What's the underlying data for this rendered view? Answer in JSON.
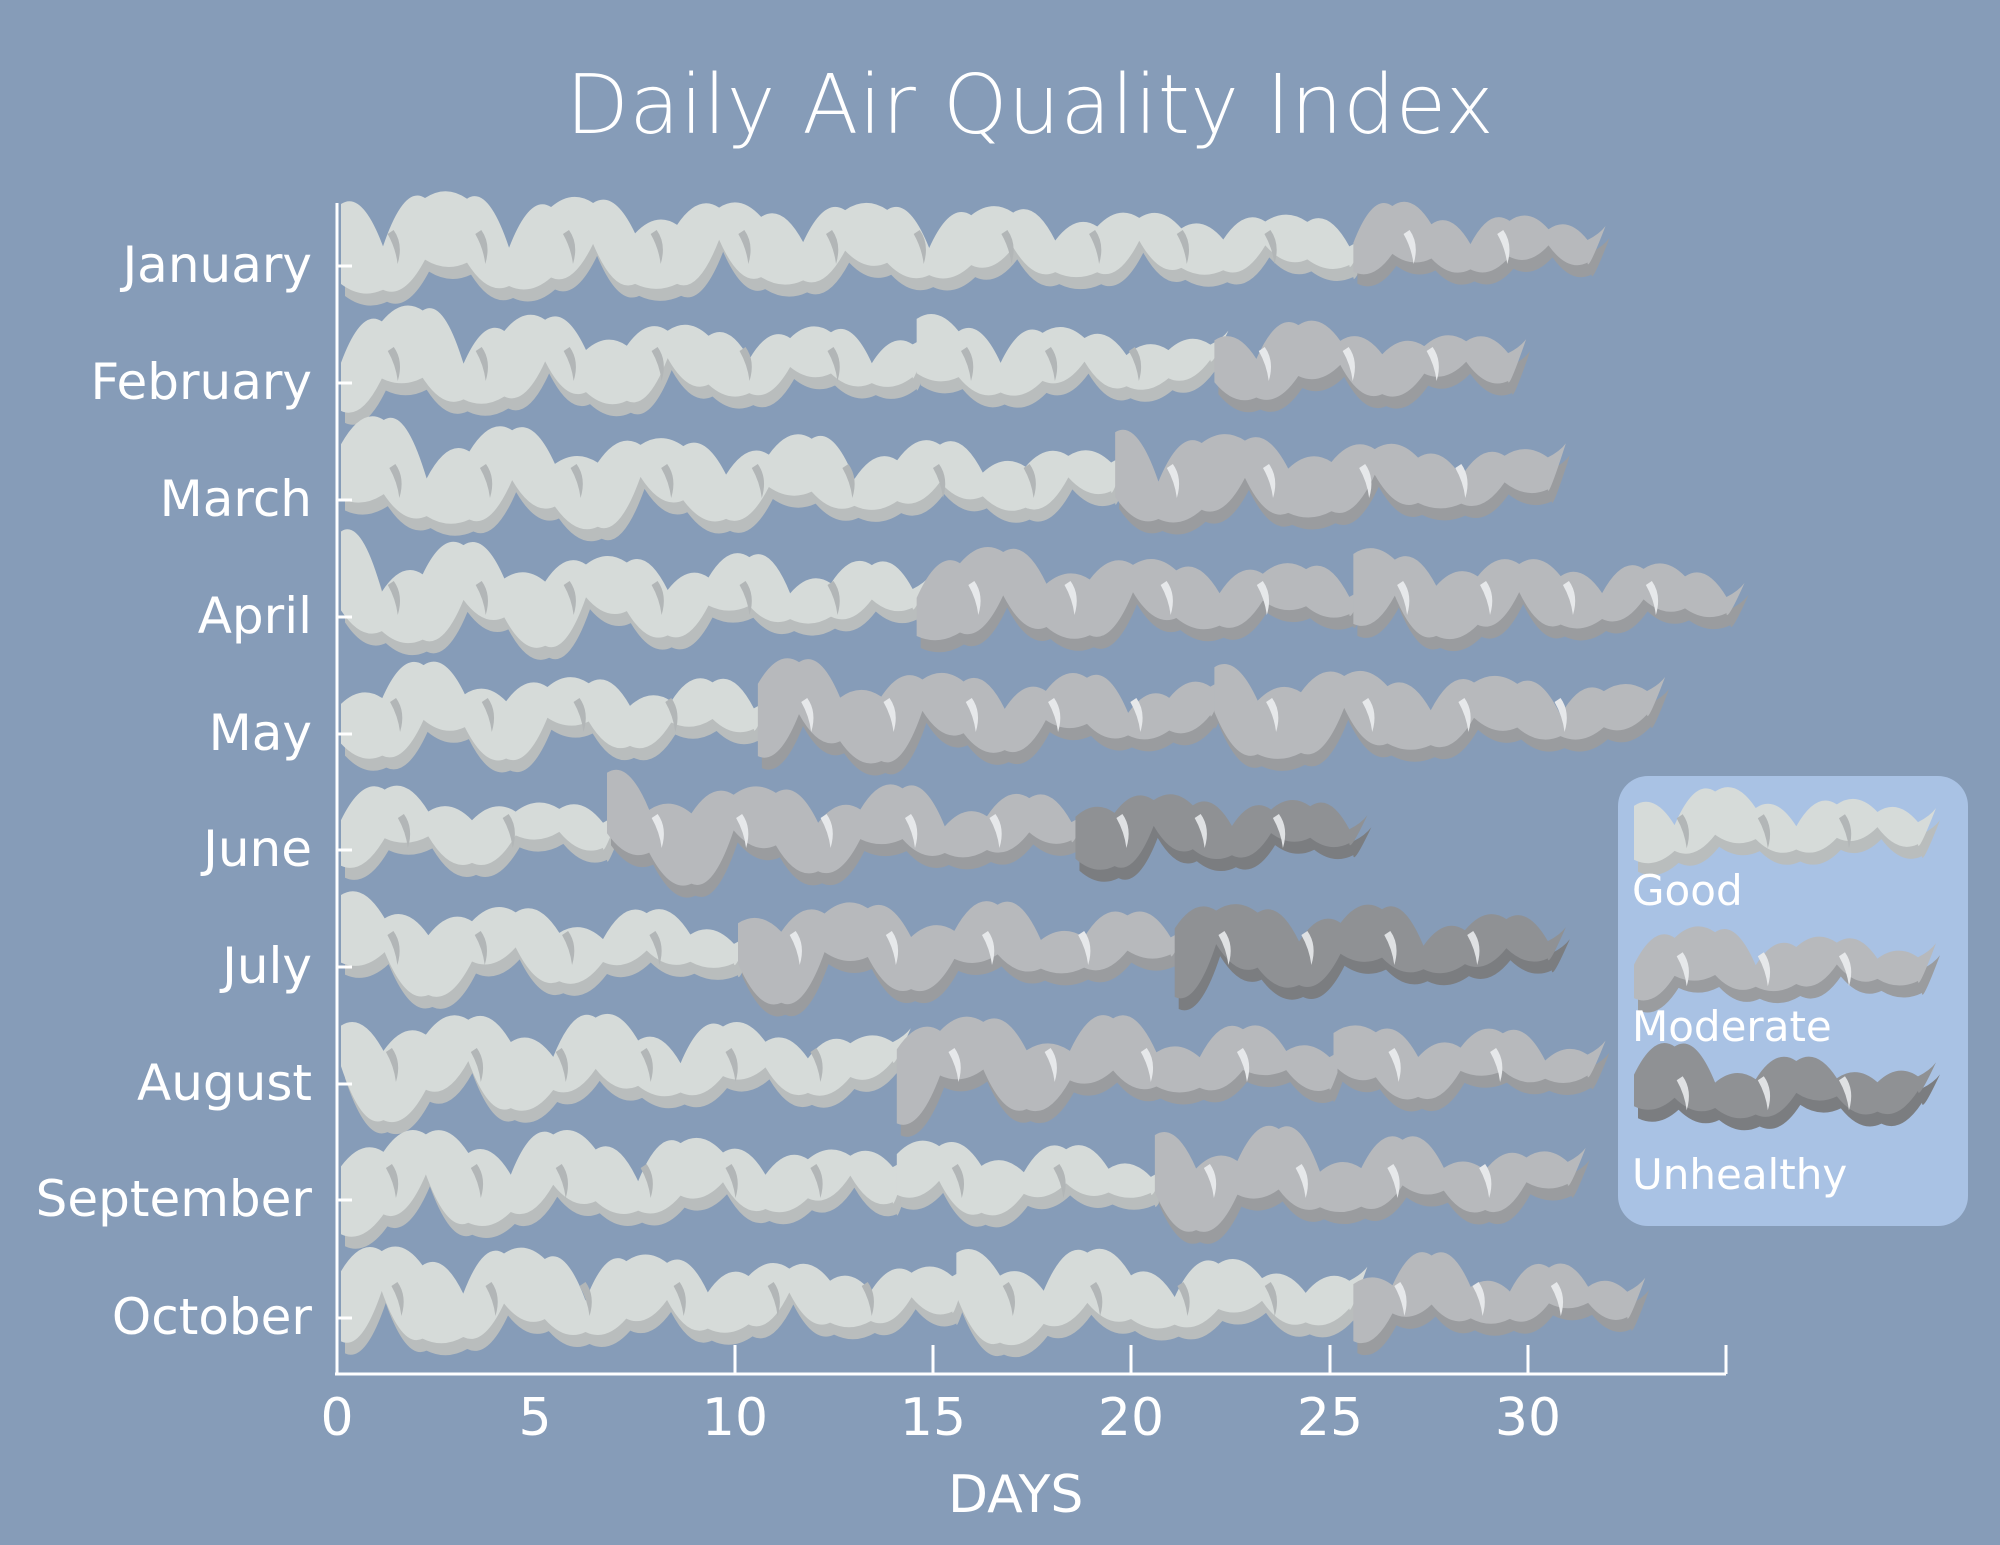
{
  "title": "Daily Air Quality Index",
  "colors": {
    "background": "#869cb8",
    "legend_bg": "#a9c2e4",
    "Good": {
      "fill": "#d6dbd9",
      "shadow": "#b9bdbd",
      "streak": "#b2b6b7"
    },
    "Moderate": {
      "fill": "#b7b9bc",
      "shadow": "#9a9c9f",
      "streak": "#e6e8ea"
    },
    "Unhealthy": {
      "fill": "#8f9194",
      "shadow": "#7b7d80",
      "streak": "#dfe1e3"
    }
  },
  "axes": {
    "x_label": "DAYS",
    "x_ticks": [
      "0",
      "5",
      "10",
      "15",
      "20",
      "25",
      "30"
    ],
    "y_labels": [
      "January",
      "February",
      "March",
      "April",
      "May",
      "June",
      "July",
      "August",
      "September",
      "October"
    ]
  },
  "legend": {
    "items": [
      {
        "label": "Good"
      },
      {
        "label": "Moderate"
      },
      {
        "label": "Unhealthy"
      }
    ]
  },
  "chart_data": {
    "type": "bar",
    "subtype": "stacked horizontal pictorial (smoke plumes)",
    "title": "Daily Air Quality Index",
    "xlabel": "DAYS",
    "ylabel": "",
    "xlim": [
      0,
      35
    ],
    "x_ticks": [
      0,
      5,
      10,
      15,
      20,
      25,
      30
    ],
    "categories": [
      "January",
      "February",
      "March",
      "April",
      "May",
      "June",
      "July",
      "August",
      "September",
      "October"
    ],
    "legend": [
      "Good",
      "Moderate",
      "Unhealthy"
    ],
    "legend_position": "right",
    "grid": false,
    "rows": [
      {
        "month": "January",
        "segments": [
          {
            "aqi": "Good",
            "start": 0,
            "end": 25.5
          },
          {
            "aqi": "Moderate",
            "start": 25.5,
            "end": 31.5
          }
        ]
      },
      {
        "month": "February",
        "segments": [
          {
            "aqi": "Good",
            "start": 0,
            "end": 14.5
          },
          {
            "aqi": "Good",
            "start": 14.5,
            "end": 22
          },
          {
            "aqi": "Moderate",
            "start": 22,
            "end": 29.5
          }
        ]
      },
      {
        "month": "March",
        "segments": [
          {
            "aqi": "Good",
            "start": 0,
            "end": 19.5
          },
          {
            "aqi": "Moderate",
            "start": 19.5,
            "end": 30.5
          }
        ]
      },
      {
        "month": "April",
        "segments": [
          {
            "aqi": "Good",
            "start": 0,
            "end": 14.5
          },
          {
            "aqi": "Moderate",
            "start": 14.5,
            "end": 25.5
          },
          {
            "aqi": "Moderate",
            "start": 25.5,
            "end": 35
          }
        ]
      },
      {
        "month": "May",
        "segments": [
          {
            "aqi": "Good",
            "start": 0,
            "end": 10.5
          },
          {
            "aqi": "Moderate",
            "start": 10.5,
            "end": 22
          },
          {
            "aqi": "Moderate",
            "start": 22,
            "end": 33
          }
        ]
      },
      {
        "month": "June",
        "segments": [
          {
            "aqi": "Good",
            "start": 0,
            "end": 6.7
          },
          {
            "aqi": "Moderate",
            "start": 6.7,
            "end": 18.5
          },
          {
            "aqi": "Unhealthy",
            "start": 18.5,
            "end": 25.5
          }
        ]
      },
      {
        "month": "July",
        "segments": [
          {
            "aqi": "Good",
            "start": 0,
            "end": 10
          },
          {
            "aqi": "Moderate",
            "start": 10,
            "end": 21
          },
          {
            "aqi": "Unhealthy",
            "start": 21,
            "end": 30.5
          }
        ]
      },
      {
        "month": "August",
        "segments": [
          {
            "aqi": "Good",
            "start": 0,
            "end": 14
          },
          {
            "aqi": "Moderate",
            "start": 14,
            "end": 25
          },
          {
            "aqi": "Moderate",
            "start": 25,
            "end": 31.5
          }
        ]
      },
      {
        "month": "September",
        "segments": [
          {
            "aqi": "Good",
            "start": 0,
            "end": 14
          },
          {
            "aqi": "Good",
            "start": 14,
            "end": 20.5
          },
          {
            "aqi": "Moderate",
            "start": 20.5,
            "end": 31
          }
        ]
      },
      {
        "month": "October",
        "segments": [
          {
            "aqi": "Good",
            "start": 0,
            "end": 15.5
          },
          {
            "aqi": "Good",
            "start": 15.5,
            "end": 25.5
          },
          {
            "aqi": "Moderate",
            "start": 25.5,
            "end": 32.5
          }
        ]
      }
    ],
    "series": [
      {
        "name": "Good (days)",
        "values": [
          25.5,
          22,
          19.5,
          14.5,
          10.5,
          6.7,
          10,
          14,
          20.5,
          25.5
        ]
      },
      {
        "name": "Moderate (days)",
        "values": [
          6,
          7.5,
          11,
          20.5,
          22.5,
          11.8,
          11,
          17.5,
          10.5,
          7
        ]
      },
      {
        "name": "Unhealthy (days)",
        "values": [
          0,
          0,
          0,
          0,
          0,
          7,
          9.5,
          0,
          0,
          0
        ]
      }
    ]
  }
}
